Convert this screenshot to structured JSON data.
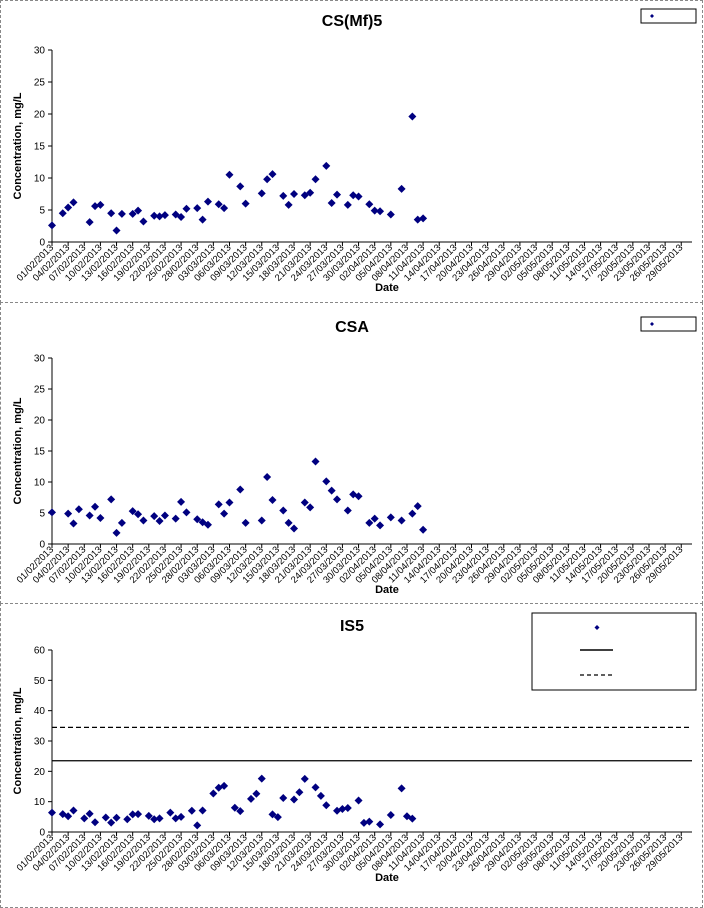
{
  "chart_data": [
    {
      "type": "scatter",
      "title": "CS(Mf)5",
      "xlabel": "Date",
      "ylabel": "Concentration, mg/L",
      "ylim": [
        0,
        30
      ],
      "yticks": [
        0,
        5,
        10,
        15,
        20,
        25,
        30
      ],
      "xlim": [
        "2013-02-01",
        "2013-05-31"
      ],
      "x_ticks_step_days": 3,
      "grid": false,
      "legend": "top-right",
      "marker_color": "#000080",
      "series": [
        {
          "name": "",
          "points": [
            [
              "2013-02-01",
              2.6
            ],
            [
              "2013-02-03",
              4.5
            ],
            [
              "2013-02-04",
              5.4
            ],
            [
              "2013-02-05",
              6.2
            ],
            [
              "2013-02-08",
              3.1
            ],
            [
              "2013-02-09",
              5.6
            ],
            [
              "2013-02-10",
              5.8
            ],
            [
              "2013-02-12",
              4.5
            ],
            [
              "2013-02-13",
              1.8
            ],
            [
              "2013-02-14",
              4.4
            ],
            [
              "2013-02-16",
              4.4
            ],
            [
              "2013-02-17",
              4.9
            ],
            [
              "2013-02-18",
              3.2
            ],
            [
              "2013-02-20",
              4.1
            ],
            [
              "2013-02-21",
              4.0
            ],
            [
              "2013-02-22",
              4.2
            ],
            [
              "2013-02-24",
              4.3
            ],
            [
              "2013-02-25",
              3.9
            ],
            [
              "2013-02-26",
              5.2
            ],
            [
              "2013-02-28",
              5.3
            ],
            [
              "2013-03-01",
              3.5
            ],
            [
              "2013-03-02",
              6.3
            ],
            [
              "2013-03-04",
              5.9
            ],
            [
              "2013-03-05",
              5.3
            ],
            [
              "2013-03-06",
              10.5
            ],
            [
              "2013-03-08",
              8.7
            ],
            [
              "2013-03-09",
              6.0
            ],
            [
              "2013-03-12",
              7.6
            ],
            [
              "2013-03-13",
              9.8
            ],
            [
              "2013-03-14",
              10.6
            ],
            [
              "2013-03-16",
              7.2
            ],
            [
              "2013-03-17",
              5.8
            ],
            [
              "2013-03-18",
              7.5
            ],
            [
              "2013-03-20",
              7.3
            ],
            [
              "2013-03-21",
              7.7
            ],
            [
              "2013-03-22",
              9.8
            ],
            [
              "2013-03-24",
              11.9
            ],
            [
              "2013-03-25",
              6.1
            ],
            [
              "2013-03-26",
              7.4
            ],
            [
              "2013-03-28",
              5.8
            ],
            [
              "2013-03-29",
              7.3
            ],
            [
              "2013-03-30",
              7.1
            ],
            [
              "2013-04-01",
              5.9
            ],
            [
              "2013-04-02",
              4.9
            ],
            [
              "2013-04-03",
              4.8
            ],
            [
              "2013-04-05",
              4.3
            ],
            [
              "2013-04-07",
              8.3
            ],
            [
              "2013-04-09",
              19.6
            ],
            [
              "2013-04-10",
              3.5
            ],
            [
              "2013-04-11",
              3.7
            ]
          ]
        }
      ]
    },
    {
      "type": "scatter",
      "title": "CSA",
      "xlabel": "Date",
      "ylabel": "Concentration, mg/L",
      "ylim": [
        0,
        30
      ],
      "yticks": [
        0,
        5,
        10,
        15,
        20,
        25,
        30
      ],
      "xlim": [
        "2013-02-01",
        "2013-05-31"
      ],
      "x_ticks_step_days": 3,
      "grid": false,
      "legend": "top-right",
      "marker_color": "#000080",
      "series": [
        {
          "name": "",
          "points": [
            [
              "2013-02-01",
              5.1
            ],
            [
              "2013-02-04",
              4.9
            ],
            [
              "2013-02-05",
              3.3
            ],
            [
              "2013-02-06",
              5.6
            ],
            [
              "2013-02-08",
              4.6
            ],
            [
              "2013-02-09",
              6.0
            ],
            [
              "2013-02-10",
              4.2
            ],
            [
              "2013-02-12",
              7.2
            ],
            [
              "2013-02-13",
              1.8
            ],
            [
              "2013-02-14",
              3.4
            ],
            [
              "2013-02-16",
              5.3
            ],
            [
              "2013-02-17",
              4.8
            ],
            [
              "2013-02-18",
              3.8
            ],
            [
              "2013-02-20",
              4.5
            ],
            [
              "2013-02-21",
              3.7
            ],
            [
              "2013-02-22",
              4.6
            ],
            [
              "2013-02-24",
              4.1
            ],
            [
              "2013-02-25",
              6.8
            ],
            [
              "2013-02-26",
              5.1
            ],
            [
              "2013-02-28",
              4.0
            ],
            [
              "2013-03-01",
              3.5
            ],
            [
              "2013-03-02",
              3.1
            ],
            [
              "2013-03-04",
              6.4
            ],
            [
              "2013-03-05",
              4.9
            ],
            [
              "2013-03-06",
              6.7
            ],
            [
              "2013-03-08",
              8.8
            ],
            [
              "2013-03-09",
              3.4
            ],
            [
              "2013-03-12",
              3.8
            ],
            [
              "2013-03-13",
              10.8
            ],
            [
              "2013-03-14",
              7.1
            ],
            [
              "2013-03-16",
              5.4
            ],
            [
              "2013-03-17",
              3.4
            ],
            [
              "2013-03-18",
              2.5
            ],
            [
              "2013-03-20",
              6.7
            ],
            [
              "2013-03-21",
              5.9
            ],
            [
              "2013-03-22",
              13.3
            ],
            [
              "2013-03-24",
              10.1
            ],
            [
              "2013-03-25",
              8.6
            ],
            [
              "2013-03-26",
              7.2
            ],
            [
              "2013-03-28",
              5.4
            ],
            [
              "2013-03-29",
              8.0
            ],
            [
              "2013-03-30",
              7.7
            ],
            [
              "2013-04-01",
              3.4
            ],
            [
              "2013-04-02",
              4.1
            ],
            [
              "2013-04-03",
              3.0
            ],
            [
              "2013-04-05",
              4.3
            ],
            [
              "2013-04-07",
              3.8
            ],
            [
              "2013-04-09",
              4.9
            ],
            [
              "2013-04-10",
              6.1
            ],
            [
              "2013-04-11",
              2.3
            ]
          ]
        }
      ]
    },
    {
      "type": "scatter",
      "title": "IS5",
      "xlabel": "Date",
      "ylabel": "Concentration, mg/L",
      "ylim": [
        0,
        60
      ],
      "yticks": [
        0,
        10,
        20,
        30,
        40,
        50,
        60
      ],
      "xlim": [
        "2013-02-01",
        "2013-05-31"
      ],
      "x_ticks_step_days": 3,
      "grid": false,
      "legend": "top-right",
      "marker_color": "#000080",
      "reference_lines": [
        {
          "name": "",
          "value": 23.5,
          "style": "solid"
        },
        {
          "name": "",
          "value": 34.5,
          "style": "dashed"
        }
      ],
      "series": [
        {
          "name": "",
          "points": [
            [
              "2013-02-01",
              6.4
            ],
            [
              "2013-02-03",
              5.9
            ],
            [
              "2013-02-04",
              5.2
            ],
            [
              "2013-02-05",
              7.1
            ],
            [
              "2013-02-07",
              4.5
            ],
            [
              "2013-02-08",
              6.0
            ],
            [
              "2013-02-09",
              3.2
            ],
            [
              "2013-02-11",
              4.8
            ],
            [
              "2013-02-12",
              3.1
            ],
            [
              "2013-02-13",
              4.7
            ],
            [
              "2013-02-15",
              4.2
            ],
            [
              "2013-02-16",
              5.8
            ],
            [
              "2013-02-17",
              5.9
            ],
            [
              "2013-02-19",
              5.3
            ],
            [
              "2013-02-20",
              4.2
            ],
            [
              "2013-02-21",
              4.5
            ],
            [
              "2013-02-23",
              6.4
            ],
            [
              "2013-02-24",
              4.5
            ],
            [
              "2013-02-25",
              5.0
            ],
            [
              "2013-02-27",
              7.0
            ],
            [
              "2013-02-28",
              2.2
            ],
            [
              "2013-03-01",
              7.1
            ],
            [
              "2013-03-03",
              12.7
            ],
            [
              "2013-03-04",
              14.6
            ],
            [
              "2013-03-05",
              15.2
            ],
            [
              "2013-03-07",
              8.0
            ],
            [
              "2013-03-08",
              6.9
            ],
            [
              "2013-03-10",
              10.9
            ],
            [
              "2013-03-11",
              12.6
            ],
            [
              "2013-03-12",
              17.6
            ],
            [
              "2013-03-14",
              5.8
            ],
            [
              "2013-03-15",
              4.9
            ],
            [
              "2013-03-16",
              11.2
            ],
            [
              "2013-03-18",
              10.7
            ],
            [
              "2013-03-19",
              13.1
            ],
            [
              "2013-03-20",
              17.5
            ],
            [
              "2013-03-22",
              14.7
            ],
            [
              "2013-03-23",
              11.9
            ],
            [
              "2013-03-24",
              8.8
            ],
            [
              "2013-03-26",
              7.0
            ],
            [
              "2013-03-27",
              7.6
            ],
            [
              "2013-03-28",
              7.9
            ],
            [
              "2013-03-30",
              10.4
            ],
            [
              "2013-03-31",
              3.0
            ],
            [
              "2013-04-01",
              3.4
            ],
            [
              "2013-04-03",
              2.5
            ],
            [
              "2013-04-05",
              5.6
            ],
            [
              "2013-04-07",
              14.4
            ],
            [
              "2013-04-08",
              5.2
            ],
            [
              "2013-04-09",
              4.4
            ]
          ]
        }
      ]
    }
  ]
}
